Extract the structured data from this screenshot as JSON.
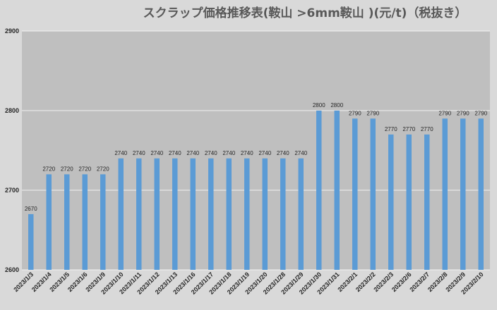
{
  "chart_data": {
    "type": "bar",
    "title": "スクラップ価格推移表(鞍山 >6mm鞍山 )(元/t)（税抜き）",
    "xlabel": "",
    "ylabel": "",
    "ylim": [
      2600,
      2900
    ],
    "yticks": [
      2600,
      2700,
      2800,
      2900
    ],
    "grid": true,
    "legend": "none",
    "categories": [
      "2023/1/3",
      "2023/1/4",
      "2023/1/5",
      "2023/1/6",
      "2023/1/9",
      "2023/1/10",
      "2023/1/11",
      "2023/1/12",
      "2023/1/13",
      "2023/1/16",
      "2023/1/17",
      "2023/1/18",
      "2023/1/19",
      "2023/1/20",
      "2023/1/28",
      "2023/1/29",
      "2023/1/30",
      "2023/1/31",
      "2023/2/1",
      "2023/2/2",
      "2023/2/3",
      "2023/2/6",
      "2023/2/7",
      "2023/2/8",
      "2023/2/9",
      "2023/2/10"
    ],
    "values": [
      2670,
      2720,
      2720,
      2720,
      2720,
      2740,
      2740,
      2740,
      2740,
      2740,
      2740,
      2740,
      2740,
      2740,
      2740,
      2740,
      2800,
      2800,
      2790,
      2790,
      2770,
      2770,
      2770,
      2790,
      2790,
      2790
    ],
    "colors": {
      "bar": "#5b9bd5",
      "plot_bg": "#bfbfbf",
      "page_bg": "#d9d9d9",
      "grid": "#f2f2f2"
    }
  }
}
